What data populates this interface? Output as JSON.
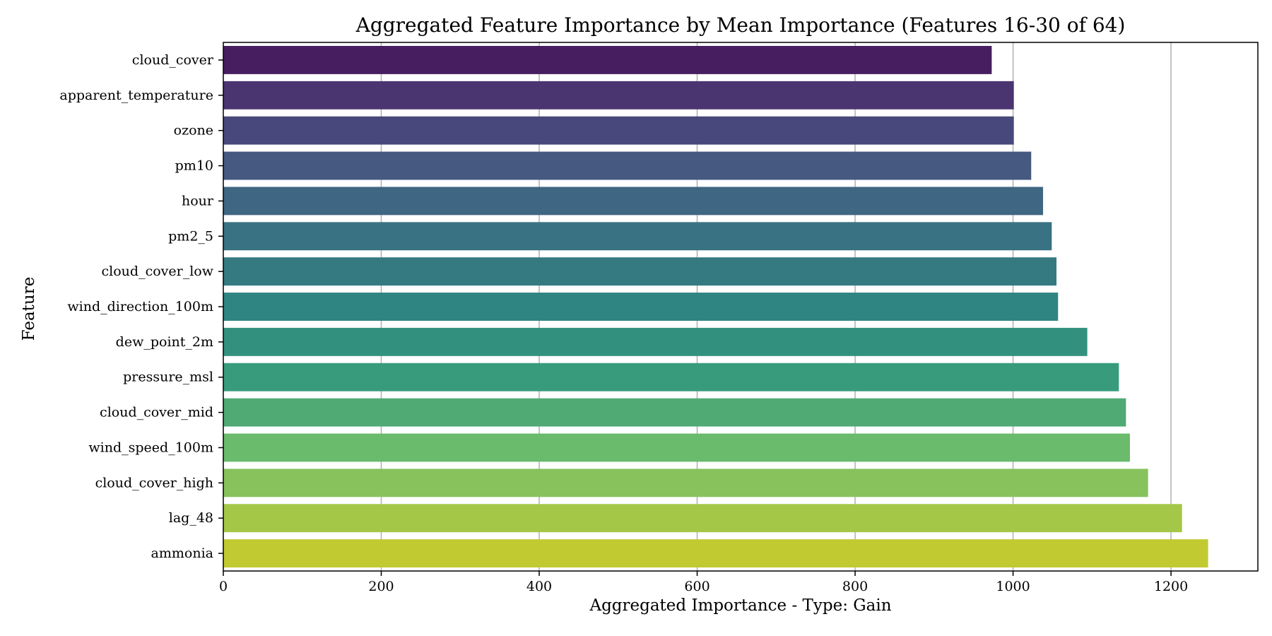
{
  "chart_data": {
    "type": "bar",
    "orientation": "horizontal",
    "title": "Aggregated Feature Importance by Mean Importance (Features 16-30 of 64)",
    "xlabel": "Aggregated Importance - Type: Gain",
    "ylabel": "Feature",
    "categories": [
      "cloud_cover",
      "apparent_temperature",
      "ozone",
      "pm10",
      "hour",
      "pm2_5",
      "cloud_cover_low",
      "wind_direction_100m",
      "dew_point_2m",
      "pressure_msl",
      "cloud_cover_mid",
      "wind_speed_100m",
      "cloud_cover_high",
      "lag_48",
      "ammonia"
    ],
    "values": [
      973,
      1001,
      1001,
      1023,
      1038,
      1049,
      1055,
      1057,
      1094,
      1134,
      1143,
      1148,
      1171,
      1214,
      1247
    ],
    "colors": [
      "#471e5f",
      "#4a3571",
      "#48487c",
      "#455981",
      "#3f6683",
      "#397283",
      "#357a81",
      "#2f8581",
      "#32907f",
      "#389c7c",
      "#4faa74",
      "#6abb6b",
      "#88c25d",
      "#a4c748",
      "#c2ca31"
    ],
    "xlim": [
      0,
      1310
    ],
    "xticks": [
      0,
      200,
      400,
      600,
      800,
      1000,
      1200
    ],
    "grid": "x-major"
  }
}
